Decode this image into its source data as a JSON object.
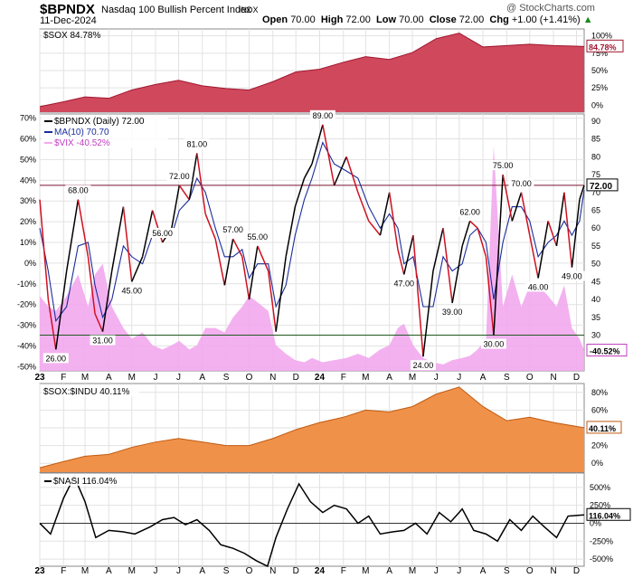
{
  "header": {
    "symbol": "$BPNDX",
    "name": "Nasdaq 100 Bullish Percent Index",
    "exchange": "INDX",
    "date": "11-Dec-2024",
    "open_label": "Open",
    "open": "70.00",
    "high_label": "High",
    "high": "72.00",
    "low_label": "Low",
    "low": "70.00",
    "close_label": "Close",
    "close": "72.00",
    "chg_label": "Chg",
    "chg": "+1.00 (+1.41%)",
    "arrow": "▲",
    "credit": "@ StockCharts.com"
  },
  "colors": {
    "sox": "#d0485c",
    "sox_line": "#a01830",
    "bpndx": "#000000",
    "ma": "#1a2d9a",
    "vix": "#f2a8ee",
    "ratio": "#f0914a",
    "ratio_line": "#c05a10",
    "ref_red": "#7a1530",
    "ref_green": "#1f5a1f",
    "grid": "#e2e2e2",
    "up_seg": "#000000",
    "down_seg": "#d01020"
  },
  "chart_data": [
    {
      "type": "area",
      "panel": "sox",
      "legend": "$SOX 84.78%",
      "last_label": "84.78%",
      "yticks": [
        "100%",
        "75%",
        "50%",
        "25%",
        "0%"
      ],
      "ylim": [
        -10,
        110
      ],
      "x": [
        "2023-01-01",
        "2023-02-01",
        "2023-03-01",
        "2023-04-01",
        "2023-05-01",
        "2023-06-01",
        "2023-07-01",
        "2023-08-01",
        "2023-09-01",
        "2023-10-01",
        "2023-11-01",
        "2023-12-01",
        "2024-01-01",
        "2024-02-01",
        "2024-03-01",
        "2024-04-01",
        "2024-05-01",
        "2024-06-01",
        "2024-07-01",
        "2024-08-01",
        "2024-09-01",
        "2024-10-01",
        "2024-11-01",
        "2024-12-11"
      ],
      "values": [
        -2,
        5,
        12,
        10,
        22,
        30,
        36,
        28,
        24,
        22,
        34,
        48,
        52,
        62,
        70,
        66,
        76,
        96,
        104,
        84,
        86,
        88,
        86,
        84.78
      ]
    },
    {
      "type": "line",
      "panel": "bpndx",
      "legend": [
        {
          "name": "$BPNDX (Daily) 72.00",
          "color_key": "bpndx"
        },
        {
          "name": "MA(10) 70.70",
          "color_key": "ma"
        },
        {
          "name": "$VIX -40.52%",
          "color_key": "vix"
        }
      ],
      "last_label": "72.00",
      "vix_last_label": "-40.52%",
      "yticks_left": [
        "70%",
        "60%",
        "50%",
        "40%",
        "30%",
        "20%",
        "10%",
        "0%",
        "-10%",
        "-20%",
        "-30%",
        "-40%",
        "-50%"
      ],
      "yticks_right": [
        "90",
        "85",
        "80",
        "75",
        "70",
        "65",
        "60",
        "55",
        "50",
        "45",
        "40",
        "35",
        "30"
      ],
      "ylim": [
        20,
        92
      ],
      "ref_lines": [
        72,
        30
      ],
      "x": [
        "2023-01-01",
        "2023-01-12",
        "2023-01-22",
        "2023-02-05",
        "2023-02-20",
        "2023-03-05",
        "2023-03-14",
        "2023-03-24",
        "2023-04-05",
        "2023-04-20",
        "2023-05-01",
        "2023-05-15",
        "2023-05-28",
        "2023-06-10",
        "2023-06-22",
        "2023-07-02",
        "2023-07-15",
        "2023-07-25",
        "2023-08-05",
        "2023-08-18",
        "2023-08-30",
        "2023-09-10",
        "2023-09-22",
        "2023-10-01",
        "2023-10-12",
        "2023-10-26",
        "2023-11-05",
        "2023-11-18",
        "2023-11-30",
        "2023-12-12",
        "2023-12-22",
        "2024-01-05",
        "2024-01-20",
        "2024-02-05",
        "2024-02-20",
        "2024-03-05",
        "2024-03-20",
        "2024-04-01",
        "2024-04-12",
        "2024-04-20",
        "2024-05-02",
        "2024-05-15",
        "2024-05-28",
        "2024-06-10",
        "2024-06-22",
        "2024-07-05",
        "2024-07-15",
        "2024-07-25",
        "2024-08-05",
        "2024-08-15",
        "2024-08-27",
        "2024-09-08",
        "2024-09-20",
        "2024-10-01",
        "2024-10-12",
        "2024-10-25",
        "2024-11-05",
        "2024-11-15",
        "2024-11-25",
        "2024-12-05",
        "2024-12-11"
      ],
      "bpndx": [
        68,
        40,
        26,
        48,
        68,
        52,
        36,
        31,
        48,
        66,
        45,
        52,
        65,
        56,
        60,
        72,
        68,
        81,
        64,
        57,
        44,
        57,
        52,
        40,
        55,
        48,
        31,
        52,
        66,
        74,
        78,
        89,
        72,
        80,
        70,
        62,
        58,
        70,
        54,
        47,
        58,
        24,
        48,
        60,
        39,
        55,
        62,
        60,
        52,
        30,
        75,
        62,
        70,
        58,
        46,
        62,
        55,
        70,
        49,
        68,
        72
      ],
      "ma": [
        60,
        48,
        34,
        38,
        55,
        56,
        44,
        35,
        40,
        55,
        52,
        50,
        58,
        58,
        58,
        65,
        68,
        74,
        70,
        60,
        52,
        52,
        54,
        46,
        50,
        50,
        38,
        44,
        58,
        68,
        74,
        84,
        78,
        76,
        74,
        66,
        60,
        64,
        60,
        50,
        52,
        38,
        38,
        52,
        48,
        50,
        58,
        60,
        56,
        40,
        56,
        66,
        66,
        62,
        52,
        56,
        58,
        62,
        58,
        62,
        70.7
      ],
      "labels": [
        {
          "x": "2023-01-22",
          "value": 26,
          "text": "26.00"
        },
        {
          "x": "2023-02-20",
          "value": 68,
          "text": "68.00"
        },
        {
          "x": "2023-03-24",
          "value": 31,
          "text": "31.00"
        },
        {
          "x": "2023-05-01",
          "value": 45,
          "text": "45.00"
        },
        {
          "x": "2023-06-10",
          "value": 56,
          "text": "56.00"
        },
        {
          "x": "2023-07-02",
          "value": 72,
          "text": "72.00"
        },
        {
          "x": "2023-07-25",
          "value": 81,
          "text": "81.00"
        },
        {
          "x": "2023-09-10",
          "value": 57,
          "text": "57.00"
        },
        {
          "x": "2023-10-12",
          "value": 55,
          "text": "55.00"
        },
        {
          "x": "2024-01-05",
          "value": 89,
          "text": "89.00"
        },
        {
          "x": "2024-04-20",
          "value": 47,
          "text": "47.00"
        },
        {
          "x": "2024-05-15",
          "value": 24,
          "text": "24.00"
        },
        {
          "x": "2024-06-22",
          "value": 39,
          "text": "39.00"
        },
        {
          "x": "2024-07-15",
          "value": 62,
          "text": "62.00"
        },
        {
          "x": "2024-08-15",
          "value": 30,
          "text": "30.00"
        },
        {
          "x": "2024-08-27",
          "value": 75,
          "text": "75.00"
        },
        {
          "x": "2024-09-20",
          "value": 70,
          "text": "70.00"
        },
        {
          "x": "2024-10-12",
          "value": 46,
          "text": "46.00"
        },
        {
          "x": "2024-11-25",
          "value": 49,
          "text": "49.00"
        }
      ],
      "vix": [
        -15,
        -20,
        -22,
        -15,
        -5,
        -20,
        -5,
        0,
        -20,
        -30,
        -35,
        -32,
        -38,
        -40,
        -38,
        -36,
        -40,
        -38,
        -30,
        -30,
        -32,
        -25,
        -20,
        -15,
        -18,
        -22,
        -38,
        -42,
        -45,
        -46,
        -44,
        -46,
        -45,
        -44,
        -42,
        -44,
        -40,
        -38,
        -30,
        -28,
        -38,
        -44,
        -46,
        -47,
        -45,
        -44,
        -43,
        -40,
        -35,
        55,
        -20,
        -5,
        -20,
        -10,
        -10,
        -15,
        -20,
        -10,
        -30,
        -35,
        -40.52
      ],
      "vix_ylim": [
        -50,
        70
      ]
    },
    {
      "type": "area",
      "panel": "ratio",
      "legend": "$SOX:$INDU 40.11%",
      "last_label": "40.11%",
      "yticks": [
        "80%",
        "60%",
        "40%",
        "20%",
        "0%"
      ],
      "ylim": [
        -10,
        90
      ],
      "x": [
        "2023-01-01",
        "2023-02-01",
        "2023-03-01",
        "2023-04-01",
        "2023-05-01",
        "2023-06-01",
        "2023-07-01",
        "2023-08-01",
        "2023-09-01",
        "2023-10-01",
        "2023-11-01",
        "2023-12-01",
        "2024-01-01",
        "2024-02-01",
        "2024-03-01",
        "2024-04-01",
        "2024-05-01",
        "2024-06-01",
        "2024-07-01",
        "2024-08-01",
        "2024-09-01",
        "2024-10-01",
        "2024-11-01",
        "2024-12-11"
      ],
      "values": [
        -5,
        2,
        8,
        10,
        18,
        24,
        28,
        24,
        20,
        20,
        28,
        38,
        46,
        52,
        60,
        58,
        64,
        78,
        86,
        64,
        48,
        52,
        46,
        40.11
      ]
    },
    {
      "type": "line",
      "panel": "nasi",
      "legend": "$NASI 116.04%",
      "last_label": "116.04%",
      "yticks": [
        "500%",
        "250%",
        "0%",
        "-250%",
        "-500%"
      ],
      "ylim": [
        -600,
        700
      ],
      "ref_lines": [
        0
      ],
      "x": [
        "2023-01-01",
        "2023-01-15",
        "2023-02-01",
        "2023-02-15",
        "2023-03-01",
        "2023-03-15",
        "2023-04-01",
        "2023-04-20",
        "2023-05-05",
        "2023-05-25",
        "2023-06-10",
        "2023-06-25",
        "2023-07-10",
        "2023-07-25",
        "2023-08-10",
        "2023-08-25",
        "2023-09-10",
        "2023-09-25",
        "2023-10-10",
        "2023-10-25",
        "2023-11-05",
        "2023-11-20",
        "2023-12-05",
        "2023-12-20",
        "2024-01-05",
        "2024-01-20",
        "2024-02-05",
        "2024-02-20",
        "2024-03-05",
        "2024-03-20",
        "2024-04-05",
        "2024-04-20",
        "2024-05-05",
        "2024-05-20",
        "2024-06-05",
        "2024-06-20",
        "2024-07-05",
        "2024-07-20",
        "2024-08-05",
        "2024-08-20",
        "2024-09-05",
        "2024-09-20",
        "2024-10-05",
        "2024-10-20",
        "2024-11-05",
        "2024-11-20",
        "2024-12-11"
      ],
      "values": [
        0,
        -150,
        350,
        650,
        300,
        -200,
        -100,
        -120,
        -150,
        -50,
        50,
        80,
        -20,
        50,
        -100,
        -300,
        -350,
        -420,
        -520,
        -600,
        -200,
        200,
        550,
        300,
        150,
        250,
        200,
        0,
        100,
        -150,
        -120,
        -100,
        0,
        -150,
        150,
        20,
        200,
        -100,
        -150,
        -250,
        50,
        -100,
        100,
        -50,
        -200,
        100,
        116.04
      ]
    }
  ],
  "x_axis": {
    "ticks": [
      "23",
      "F",
      "M",
      "A",
      "M",
      "J",
      "J",
      "A",
      "S",
      "O",
      "N",
      "D",
      "24",
      "F",
      "M",
      "A",
      "M",
      "J",
      "J",
      "A",
      "S",
      "O",
      "N",
      "D"
    ]
  }
}
